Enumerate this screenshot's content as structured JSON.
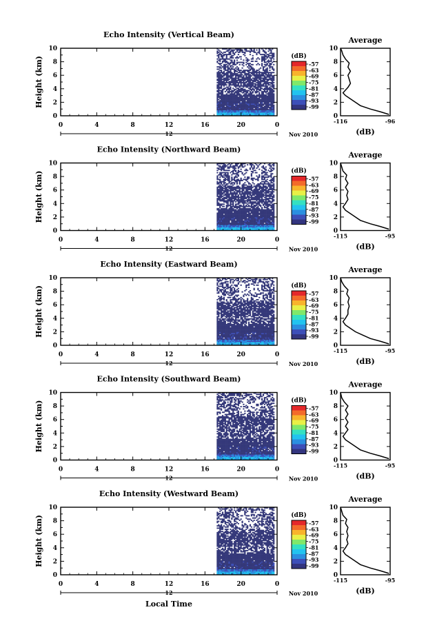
{
  "chart_data": [
    {
      "type": "heatmap",
      "title": "Echo Intensity (Vertical Beam)",
      "ylabel": "Height (km)",
      "x_ticks": [
        "0",
        "4",
        "8",
        "12",
        "16",
        "20",
        "0"
      ],
      "y_ticks": [
        "0",
        "2",
        "4",
        "6",
        "8",
        "10"
      ],
      "xlim": [
        0,
        24
      ],
      "ylim": [
        0,
        10
      ],
      "date_ticks": [
        "12"
      ],
      "date_label": "Nov 2010",
      "data_start_hour": 17.3,
      "colorbar": {
        "label": "(dB)",
        "ticks": [
          "-57",
          "-63",
          "-69",
          "-75",
          "-81",
          "-87",
          "-93",
          "-99"
        ]
      },
      "profile": {
        "title": "Average",
        "xlabel": "(dB)",
        "x_ticks": [
          "-116",
          "-96"
        ],
        "y_ticks": [
          "0",
          "2",
          "4",
          "6",
          "8",
          "10"
        ],
        "xlim": [
          -116,
          -96
        ],
        "ylim": [
          0,
          10
        ],
        "points": [
          [
            -96.5,
            0.2
          ],
          [
            -100,
            0.6
          ],
          [
            -104,
            1.0
          ],
          [
            -108,
            1.5
          ],
          [
            -110,
            2.0
          ],
          [
            -112,
            2.5
          ],
          [
            -114,
            3.0
          ],
          [
            -115,
            3.4
          ],
          [
            -114,
            3.8
          ],
          [
            -113,
            4.2
          ],
          [
            -112,
            4.8
          ],
          [
            -112.5,
            5.4
          ],
          [
            -113,
            6.0
          ],
          [
            -112,
            6.6
          ],
          [
            -113,
            7.2
          ],
          [
            -112.5,
            7.8
          ],
          [
            -114,
            8.4
          ],
          [
            -115,
            9.0
          ],
          [
            -115.5,
            9.6
          ],
          [
            -116,
            10.0
          ]
        ]
      }
    },
    {
      "type": "heatmap",
      "title": "Echo Intensity (Northward Beam)",
      "ylabel": "Height (km)",
      "x_ticks": [
        "0",
        "4",
        "8",
        "12",
        "16",
        "20",
        "0"
      ],
      "y_ticks": [
        "0",
        "2",
        "4",
        "6",
        "8",
        "10"
      ],
      "xlim": [
        0,
        24
      ],
      "ylim": [
        0,
        10
      ],
      "date_ticks": [
        "12"
      ],
      "date_label": "Nov 2010",
      "data_start_hour": 17.3,
      "colorbar": {
        "label": "(dB)",
        "ticks": [
          "-57",
          "-63",
          "-69",
          "-75",
          "-81",
          "-87",
          "-93",
          "-99"
        ]
      },
      "profile": {
        "title": "Average",
        "xlabel": "(dB)",
        "x_ticks": [
          "-115",
          "-95"
        ],
        "y_ticks": [
          "0",
          "2",
          "4",
          "6",
          "8",
          "10"
        ],
        "xlim": [
          -115,
          -95
        ],
        "ylim": [
          0,
          10
        ],
        "points": [
          [
            -95.5,
            0.2
          ],
          [
            -99,
            0.6
          ],
          [
            -103,
            1.0
          ],
          [
            -107,
            1.5
          ],
          [
            -109,
            2.0
          ],
          [
            -111,
            2.5
          ],
          [
            -113,
            3.0
          ],
          [
            -114,
            3.5
          ],
          [
            -113,
            4.0
          ],
          [
            -112,
            4.6
          ],
          [
            -112.5,
            5.2
          ],
          [
            -112,
            5.8
          ],
          [
            -113,
            6.4
          ],
          [
            -112,
            7.0
          ],
          [
            -113,
            7.6
          ],
          [
            -112.5,
            8.2
          ],
          [
            -114,
            8.8
          ],
          [
            -114.5,
            9.4
          ],
          [
            -115,
            10.0
          ]
        ]
      }
    },
    {
      "type": "heatmap",
      "title": "Echo Intensity (Eastward Beam)",
      "ylabel": "Height (km)",
      "x_ticks": [
        "0",
        "4",
        "8",
        "12",
        "16",
        "20",
        "0"
      ],
      "y_ticks": [
        "0",
        "2",
        "4",
        "6",
        "8",
        "10"
      ],
      "xlim": [
        0,
        24
      ],
      "ylim": [
        0,
        10
      ],
      "date_ticks": [
        "12"
      ],
      "date_label": "Nov 2010",
      "data_start_hour": 17.3,
      "colorbar": {
        "label": "(dB)",
        "ticks": [
          "-57",
          "-63",
          "-69",
          "-75",
          "-81",
          "-87",
          "-93",
          "-99"
        ]
      },
      "profile": {
        "title": "Average",
        "xlabel": "(dB)",
        "x_ticks": [
          "-115",
          "-95"
        ],
        "y_ticks": [
          "0",
          "2",
          "4",
          "6",
          "8",
          "10"
        ],
        "xlim": [
          -115,
          -95
        ],
        "ylim": [
          0,
          10
        ],
        "points": [
          [
            -95.5,
            0.2
          ],
          [
            -99,
            0.6
          ],
          [
            -103,
            1.0
          ],
          [
            -106,
            1.5
          ],
          [
            -109,
            2.0
          ],
          [
            -111,
            2.5
          ],
          [
            -113,
            3.0
          ],
          [
            -114,
            3.5
          ],
          [
            -113,
            4.0
          ],
          [
            -112,
            4.6
          ],
          [
            -112,
            5.2
          ],
          [
            -111.5,
            5.8
          ],
          [
            -112,
            6.4
          ],
          [
            -111.5,
            7.0
          ],
          [
            -112.5,
            7.6
          ],
          [
            -112,
            8.2
          ],
          [
            -113.5,
            8.8
          ],
          [
            -114.5,
            9.4
          ],
          [
            -115,
            10.0
          ]
        ]
      }
    },
    {
      "type": "heatmap",
      "title": "Echo Intensity (Southward Beam)",
      "ylabel": "Height (km)",
      "x_ticks": [
        "0",
        "4",
        "8",
        "12",
        "16",
        "20",
        "0"
      ],
      "y_ticks": [
        "0",
        "2",
        "4",
        "6",
        "8",
        "10"
      ],
      "xlim": [
        0,
        24
      ],
      "ylim": [
        0,
        10
      ],
      "date_ticks": [
        "12"
      ],
      "date_label": "Nov 2010",
      "data_start_hour": 17.3,
      "colorbar": {
        "label": "(dB)",
        "ticks": [
          "-57",
          "-63",
          "-69",
          "-75",
          "-81",
          "-87",
          "-93",
          "-99"
        ]
      },
      "profile": {
        "title": "Average",
        "xlabel": "(dB)",
        "x_ticks": [
          "-115",
          "-95"
        ],
        "y_ticks": [
          "0",
          "2",
          "4",
          "6",
          "8",
          "10"
        ],
        "xlim": [
          -115,
          -95
        ],
        "ylim": [
          0,
          10
        ],
        "points": [
          [
            -95.5,
            0.2
          ],
          [
            -99,
            0.6
          ],
          [
            -103,
            1.0
          ],
          [
            -107,
            1.5
          ],
          [
            -109,
            2.0
          ],
          [
            -111,
            2.5
          ],
          [
            -113,
            3.0
          ],
          [
            -114,
            3.5
          ],
          [
            -113,
            4.0
          ],
          [
            -112,
            4.5
          ],
          [
            -113,
            5.0
          ],
          [
            -112,
            5.6
          ],
          [
            -113,
            6.2
          ],
          [
            -112,
            6.8
          ],
          [
            -113,
            7.4
          ],
          [
            -112,
            8.0
          ],
          [
            -113.5,
            8.6
          ],
          [
            -114.5,
            9.2
          ],
          [
            -115,
            10.0
          ]
        ]
      }
    },
    {
      "type": "heatmap",
      "title": "Echo Intensity (Westward Beam)",
      "ylabel": "Height (km)",
      "x_ticks": [
        "0",
        "4",
        "8",
        "12",
        "16",
        "20",
        "0"
      ],
      "y_ticks": [
        "0",
        "2",
        "4",
        "6",
        "8",
        "10"
      ],
      "xlim": [
        0,
        24
      ],
      "ylim": [
        0,
        10
      ],
      "date_ticks": [
        "12"
      ],
      "date_label": "Nov 2010",
      "data_start_hour": 17.3,
      "xlabel": "Local Time",
      "colorbar": {
        "label": "(dB)",
        "ticks": [
          "-57",
          "-63",
          "-69",
          "-75",
          "-81",
          "-87",
          "-93",
          "-99"
        ]
      },
      "profile": {
        "title": "Average",
        "xlabel": "(dB)",
        "x_ticks": [
          "-115",
          "-95"
        ],
        "y_ticks": [
          "0",
          "2",
          "4",
          "6",
          "8",
          "10"
        ],
        "xlim": [
          -115,
          -95
        ],
        "ylim": [
          0,
          10
        ],
        "points": [
          [
            -95.5,
            0.2
          ],
          [
            -99,
            0.6
          ],
          [
            -103,
            1.0
          ],
          [
            -107,
            1.5
          ],
          [
            -109,
            2.0
          ],
          [
            -111,
            2.5
          ],
          [
            -113,
            3.0
          ],
          [
            -114,
            3.5
          ],
          [
            -113,
            4.0
          ],
          [
            -112,
            4.6
          ],
          [
            -112.5,
            5.2
          ],
          [
            -112,
            5.8
          ],
          [
            -112.5,
            6.4
          ],
          [
            -112,
            7.0
          ],
          [
            -113,
            7.6
          ],
          [
            -112.5,
            8.2
          ],
          [
            -114,
            8.8
          ],
          [
            -114.5,
            9.4
          ],
          [
            -115,
            10.0
          ]
        ]
      }
    }
  ],
  "colors": {
    "background_echo": "#35397a",
    "colorbar": [
      "#33357f",
      "#3d4fb8",
      "#2b8fe0",
      "#22c3ef",
      "#34e0c2",
      "#7fe86a",
      "#e8f046",
      "#f8b42c",
      "#f36b2a",
      "#e4282a"
    ]
  }
}
